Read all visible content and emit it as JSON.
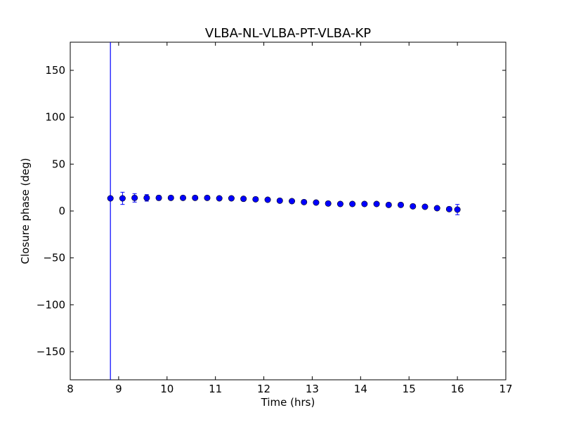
{
  "chart_data": {
    "type": "scatter",
    "title": "VLBA-NL-VLBA-PT-VLBA-KP",
    "xlabel": "Time (hrs)",
    "ylabel": "Closure phase (deg)",
    "xlim": [
      8,
      17
    ],
    "ylim": [
      -180,
      180
    ],
    "xticks": [
      8,
      9,
      10,
      11,
      12,
      13,
      14,
      15,
      16,
      17
    ],
    "xtick_labels": [
      "8",
      "9",
      "10",
      "11",
      "12",
      "13",
      "14",
      "15",
      "16",
      "17"
    ],
    "yticks": [
      -150,
      -100,
      -50,
      0,
      50,
      100,
      150
    ],
    "ytick_labels": [
      "−150",
      "−100",
      "−50",
      "0",
      "50",
      "100",
      "150"
    ],
    "grid": false,
    "marker_color": "#0000ff",
    "series": [
      {
        "points": [
          {
            "x": 8.83,
            "y": 13.5,
            "err": 1.5
          },
          {
            "x": 9.08,
            "y": 13.5,
            "err": 6.5
          },
          {
            "x": 9.33,
            "y": 14.0,
            "err": 4.5
          },
          {
            "x": 9.58,
            "y": 14.0,
            "err": 3.5
          },
          {
            "x": 9.83,
            "y": 14.0,
            "err": 2.5
          },
          {
            "x": 10.08,
            "y": 14.0,
            "err": 2.0
          },
          {
            "x": 10.33,
            "y": 14.0,
            "err": 1.5
          },
          {
            "x": 10.58,
            "y": 14.0,
            "err": 1.5
          },
          {
            "x": 10.83,
            "y": 14.0,
            "err": 1.5
          },
          {
            "x": 11.08,
            "y": 13.5,
            "err": 1.5
          },
          {
            "x": 11.33,
            "y": 13.5,
            "err": 1.5
          },
          {
            "x": 11.58,
            "y": 13.0,
            "err": 1.5
          },
          {
            "x": 11.83,
            "y": 12.5,
            "err": 1.5
          },
          {
            "x": 12.08,
            "y": 12.0,
            "err": 1.5
          },
          {
            "x": 12.33,
            "y": 11.0,
            "err": 1.5
          },
          {
            "x": 12.58,
            "y": 10.5,
            "err": 1.5
          },
          {
            "x": 12.83,
            "y": 9.5,
            "err": 1.5
          },
          {
            "x": 13.08,
            "y": 9.0,
            "err": 1.5
          },
          {
            "x": 13.33,
            "y": 8.0,
            "err": 1.5
          },
          {
            "x": 13.58,
            "y": 7.5,
            "err": 1.5
          },
          {
            "x": 13.83,
            "y": 7.5,
            "err": 1.5
          },
          {
            "x": 14.08,
            "y": 7.5,
            "err": 1.5
          },
          {
            "x": 14.33,
            "y": 7.5,
            "err": 1.5
          },
          {
            "x": 14.58,
            "y": 6.5,
            "err": 1.5
          },
          {
            "x": 14.83,
            "y": 6.5,
            "err": 1.5
          },
          {
            "x": 15.08,
            "y": 5.0,
            "err": 1.5
          },
          {
            "x": 15.33,
            "y": 4.5,
            "err": 1.5
          },
          {
            "x": 15.58,
            "y": 3.0,
            "err": 1.5
          },
          {
            "x": 15.83,
            "y": 2.0,
            "err": 2.0
          },
          {
            "x": 16.0,
            "y": 1.5,
            "err": 5.5
          }
        ]
      }
    ],
    "vertical_lines": [
      8.83
    ]
  }
}
